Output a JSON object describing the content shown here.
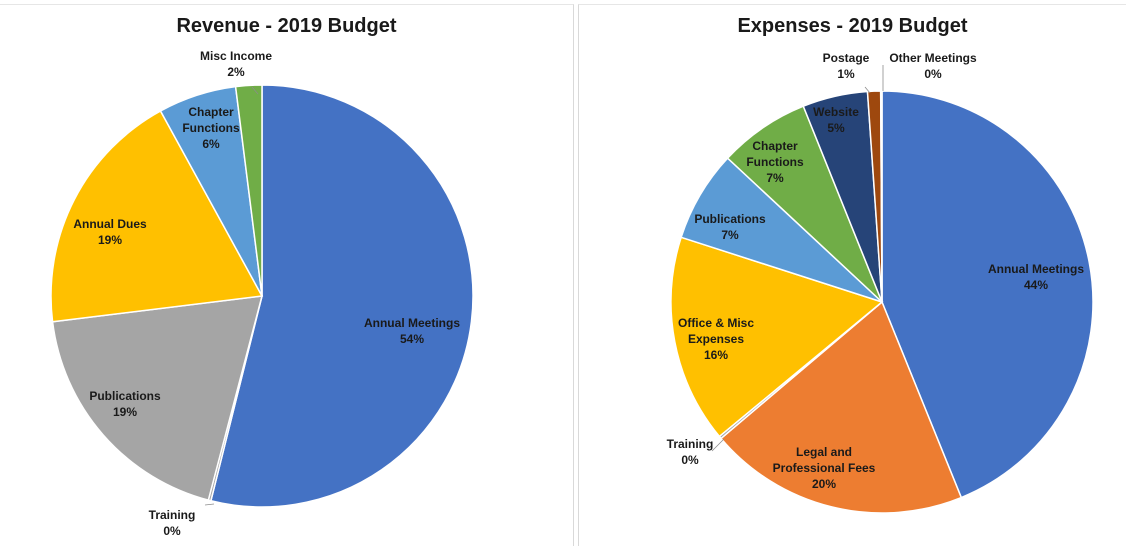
{
  "chart_data": [
    {
      "type": "pie",
      "title": "Revenue - 2019 Budget",
      "slices": [
        {
          "label": "Annual Meetings",
          "pct_text": "54%",
          "value": 54,
          "color": "#4472C4"
        },
        {
          "label": "Training",
          "pct_text": "0%",
          "value": 0.2,
          "color": "#A5A5A5"
        },
        {
          "label": "Publications",
          "pct_text": "19%",
          "value": 19,
          "color": "#A5A5A5"
        },
        {
          "label": "Annual Dues",
          "pct_text": "19%",
          "value": 19,
          "color": "#FFC000"
        },
        {
          "label": "Chapter Functions",
          "pct_text": "6%",
          "value": 6,
          "color": "#5B9BD5"
        },
        {
          "label": "Misc Income",
          "pct_text": "2%",
          "value": 2,
          "color": "#70AD47"
        }
      ]
    },
    {
      "type": "pie",
      "title": "Expenses - 2019 Budget",
      "slices": [
        {
          "label": "Annual Meetings",
          "pct_text": "44%",
          "value": 44,
          "color": "#4472C4"
        },
        {
          "label": "Legal and Professional Fees",
          "pct_text": "20%",
          "value": 20,
          "color": "#ED7D31"
        },
        {
          "label": "Training",
          "pct_text": "0%",
          "value": 0.2,
          "color": "#A5A5A5"
        },
        {
          "label": "Office & Misc Expenses",
          "pct_text": "16%",
          "value": 16,
          "color": "#FFC000"
        },
        {
          "label": "Publications",
          "pct_text": "7%",
          "value": 7,
          "color": "#5B9BD5"
        },
        {
          "label": "Chapter Functions",
          "pct_text": "7%",
          "value": 7,
          "color": "#70AD47"
        },
        {
          "label": "Website",
          "pct_text": "5%",
          "value": 5,
          "color": "#264478"
        },
        {
          "label": "Postage",
          "pct_text": "1%",
          "value": 1,
          "color": "#9E480E"
        },
        {
          "label": "Other Meetings",
          "pct_text": "0%",
          "value": 0.1,
          "color": "#636363"
        }
      ]
    }
  ]
}
